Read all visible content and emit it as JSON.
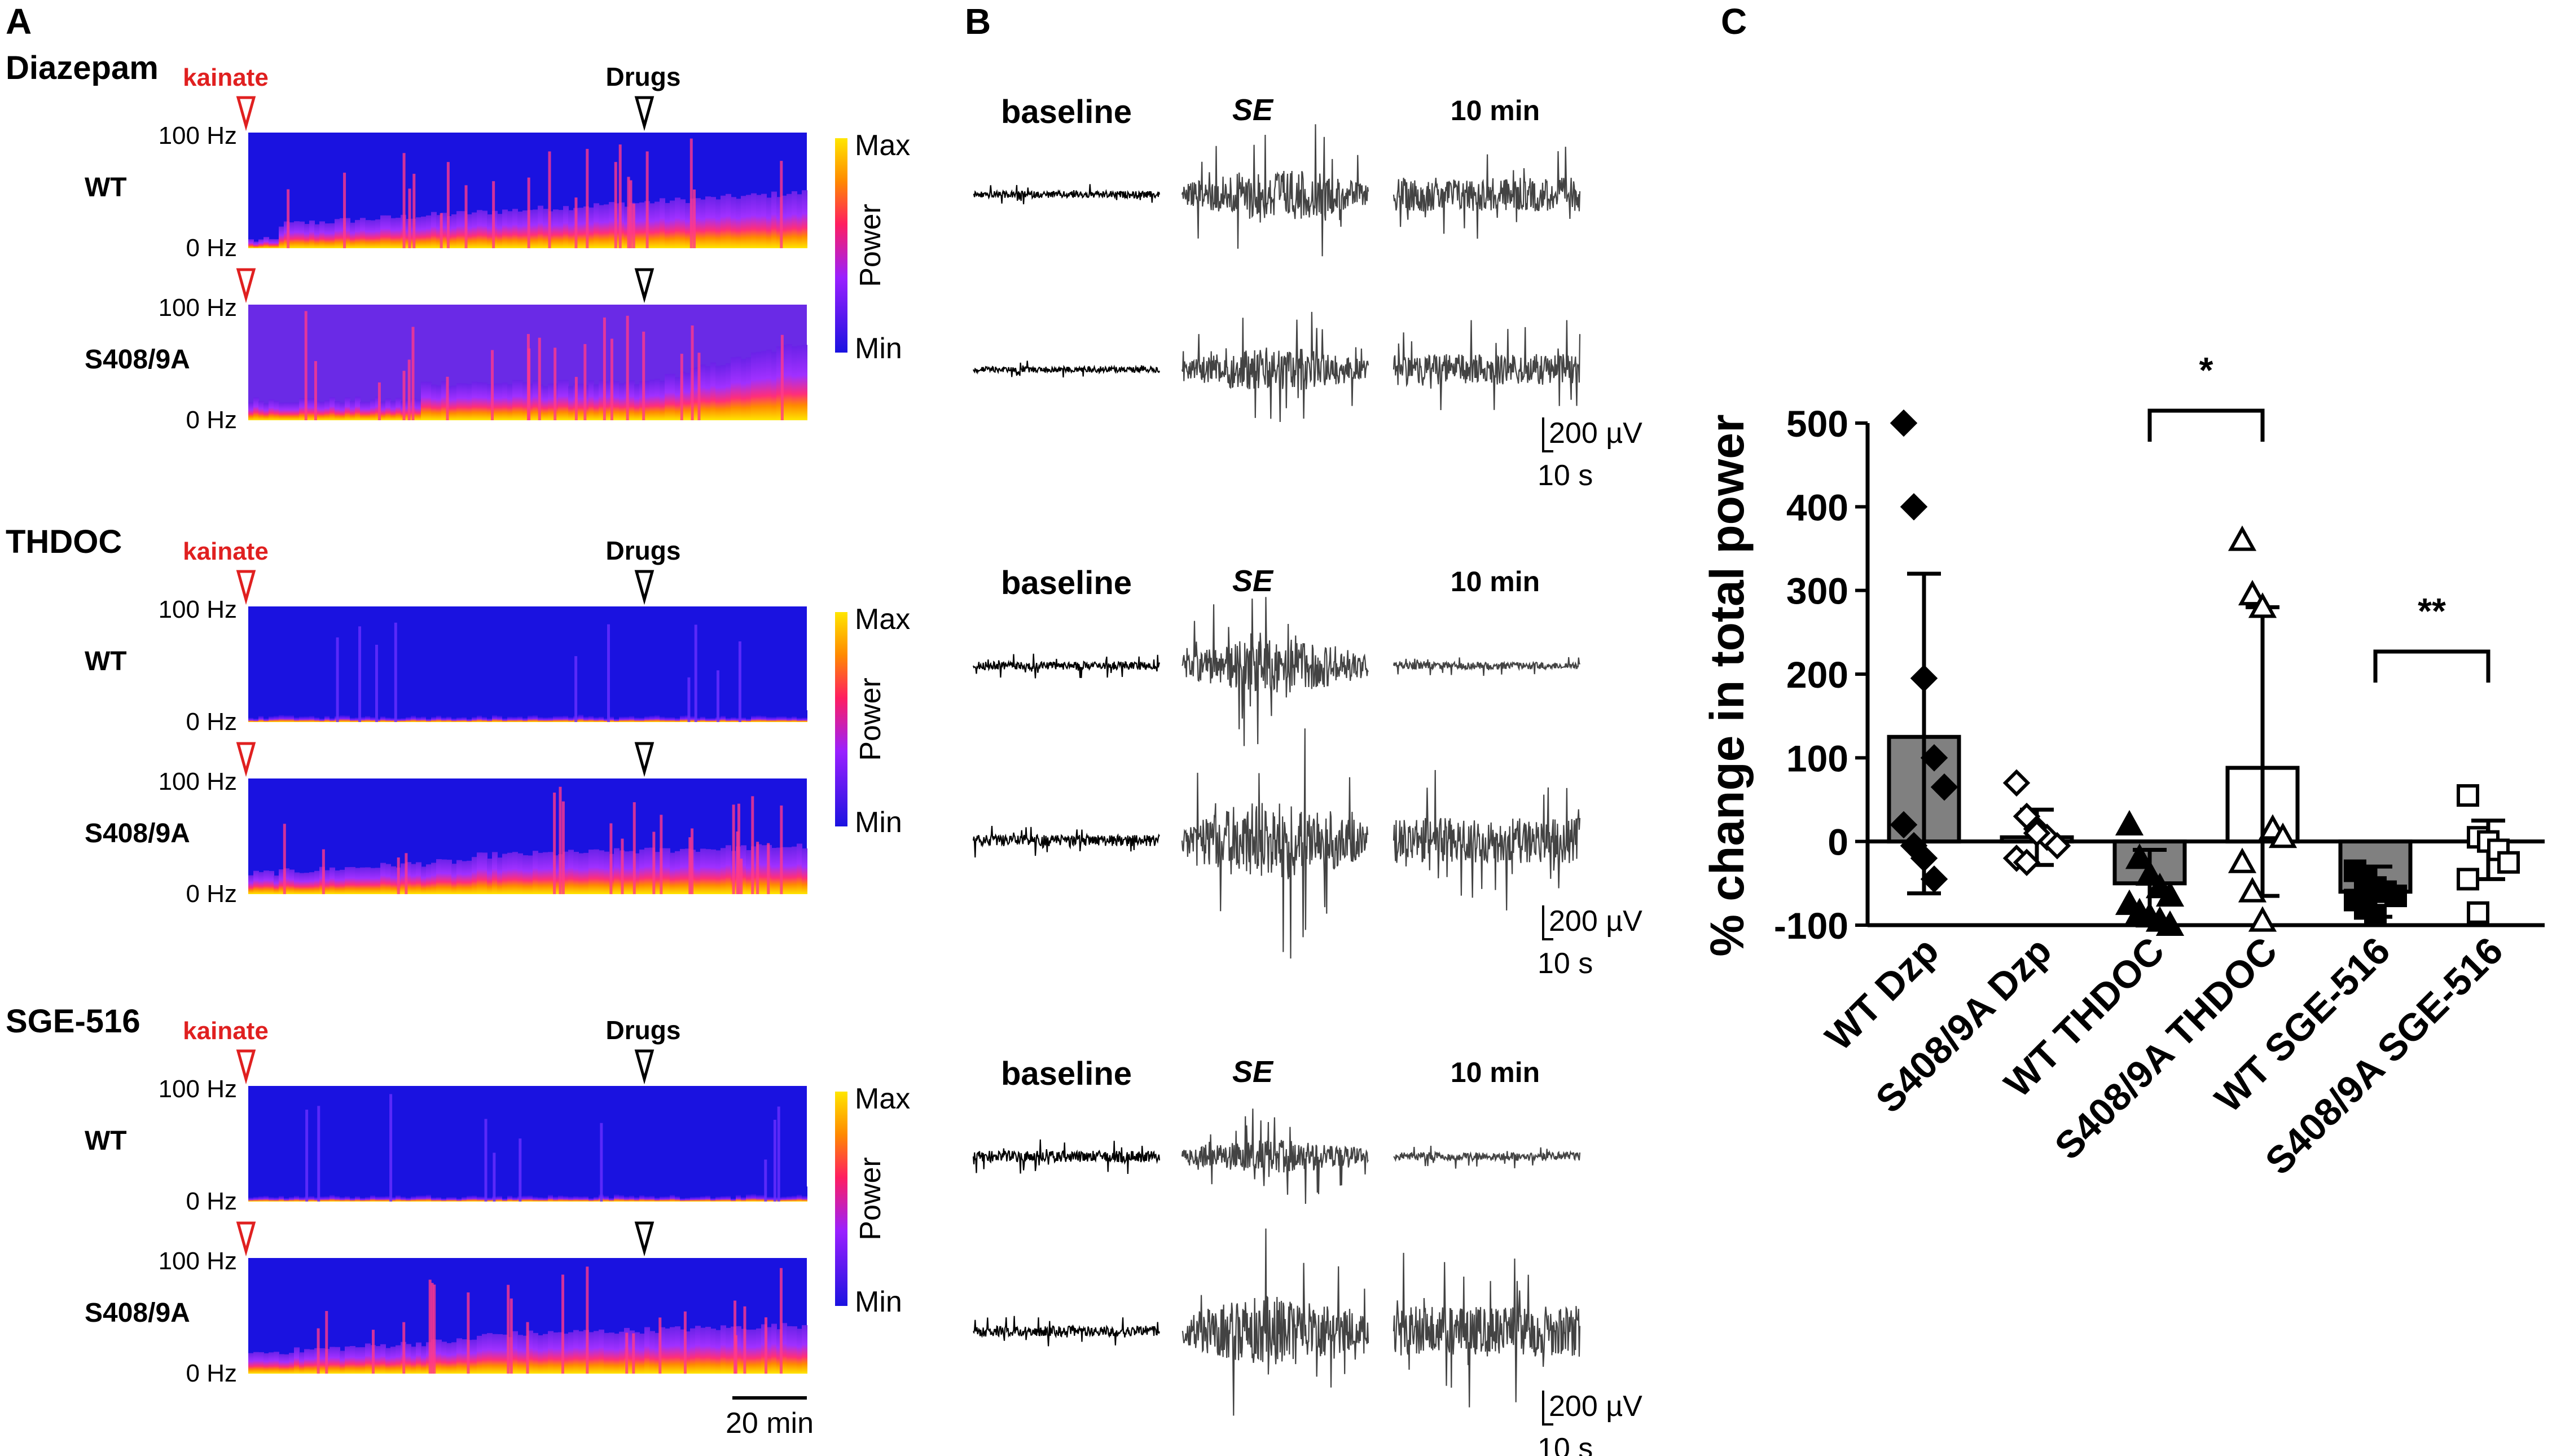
{
  "panels": {
    "A": {
      "letter": "A",
      "groups": [
        {
          "title": "Diazepam",
          "kainate": "kainate",
          "drugs": "Drugs",
          "rows": [
            {
              "genotype": "WT",
              "ytop": "100 Hz",
              "ybot": "0 Hz"
            },
            {
              "genotype": "S408/9A",
              "ytop": "100 Hz",
              "ybot": "0 Hz"
            }
          ],
          "colorbar": {
            "max": "Max",
            "min": "Min",
            "label": "Power"
          }
        },
        {
          "title": "THDOC",
          "kainate": "kainate",
          "drugs": "Drugs",
          "rows": [
            {
              "genotype": "WT",
              "ytop": "100 Hz",
              "ybot": "0 Hz"
            },
            {
              "genotype": "S408/9A",
              "ytop": "100 Hz",
              "ybot": "0 Hz"
            }
          ],
          "colorbar": {
            "max": "Max",
            "min": "Min",
            "label": "Power"
          }
        },
        {
          "title": "SGE-516",
          "kainate": "kainate",
          "drugs": "Drugs",
          "rows": [
            {
              "genotype": "WT",
              "ytop": "100 Hz",
              "ybot": "0 Hz"
            },
            {
              "genotype": "S408/9A",
              "ytop": "100 Hz",
              "ybot": "0 Hz"
            }
          ],
          "colorbar": {
            "max": "Max",
            "min": "Min",
            "label": "Power"
          }
        }
      ],
      "timescale": "20 min"
    },
    "B": {
      "letter": "B",
      "groups": [
        {
          "headers": [
            "baseline",
            "SE",
            "10 min"
          ]
        },
        {
          "headers": [
            "baseline",
            "SE",
            "10 min"
          ]
        },
        {
          "headers": [
            "baseline",
            "SE",
            "10 min"
          ]
        }
      ],
      "scalebar": {
        "amplitude": "200 µV",
        "time": "10 s"
      }
    },
    "C": {
      "letter": "C"
    }
  },
  "colors": {
    "spec_low": "#1a12e0",
    "spec_mid": "#c020ff",
    "spec_high": "#ffe600",
    "bar_fill": "#808080",
    "kainate": "#e02020"
  },
  "chart_data": {
    "type": "bar",
    "title": "",
    "xlabel": "",
    "ylabel": "% change in total power",
    "ylim": [
      -100,
      500
    ],
    "yticks": [
      -100,
      0,
      100,
      200,
      300,
      400,
      500
    ],
    "categories": [
      "WT Dzp",
      "S408/9A Dzp",
      "WT THDOC",
      "S408/9A THDOC",
      "WT SGE-516",
      "S408/9A SGE-516"
    ],
    "series": [
      {
        "name": "WT Dzp",
        "mean": 125,
        "sd_low": -62,
        "sd_high": 320,
        "filled": true,
        "marker": "diamond",
        "points": [
          500,
          400,
          195,
          100,
          65,
          20,
          -5,
          -20,
          -45
        ]
      },
      {
        "name": "S408/9A Dzp",
        "mean": 5,
        "sd_low": -28,
        "sd_high": 38,
        "filled": false,
        "marker": "diamond",
        "points": [
          70,
          30,
          15,
          5,
          -5,
          -20,
          -25,
          10
        ]
      },
      {
        "name": "WT THDOC",
        "mean": -50,
        "sd_low": -100,
        "sd_high": -10,
        "filled": true,
        "marker": "triangle",
        "points": [
          20,
          -20,
          -40,
          -55,
          -65,
          -75,
          -85,
          -90,
          -95,
          -100
        ]
      },
      {
        "name": "S408/9A THDOC",
        "mean": 88,
        "sd_low": -65,
        "sd_high": 280,
        "filled": false,
        "marker": "triangle",
        "points": [
          360,
          295,
          280,
          15,
          5,
          -25,
          -60,
          -95
        ]
      },
      {
        "name": "WT SGE-516",
        "mean": -60,
        "sd_low": -90,
        "sd_high": -30,
        "filled": true,
        "marker": "square",
        "points": [
          -35,
          -45,
          -55,
          -60,
          -65,
          -70,
          -80,
          -88
        ]
      },
      {
        "name": "S408/9A SGE-516",
        "mean": 0,
        "sd_low": -45,
        "sd_high": 25,
        "filled": false,
        "marker": "square",
        "points": [
          55,
          5,
          0,
          -10,
          -25,
          -45,
          -85
        ]
      }
    ],
    "significance": [
      {
        "from": "WT THDOC",
        "to": "S408/9A THDOC",
        "label": "*"
      },
      {
        "from": "WT SGE-516",
        "to": "S408/9A SGE-516",
        "label": "**"
      }
    ]
  }
}
